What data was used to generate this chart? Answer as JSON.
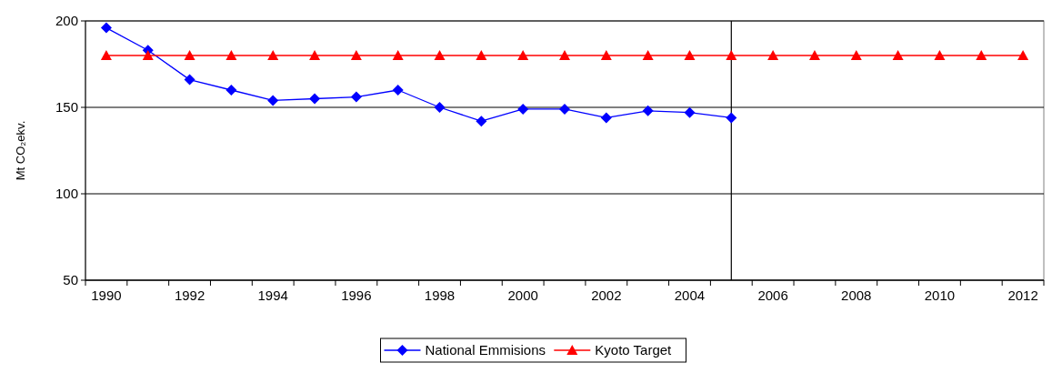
{
  "chart_data": {
    "type": "line",
    "ylabel": "Mt CO₂ekv.",
    "x": [
      1990,
      1991,
      1992,
      1993,
      1994,
      1995,
      1996,
      1997,
      1998,
      1999,
      2000,
      2001,
      2002,
      2003,
      2004,
      2005,
      2006,
      2007,
      2008,
      2009,
      2010,
      2011,
      2012
    ],
    "xlim": [
      1989.5,
      2012.5
    ],
    "xticks": [
      {
        "value": 1989.5,
        "label": null
      },
      1990,
      {
        "value": 1990.5,
        "label": null
      },
      {
        "value": 1991.5,
        "label": null
      },
      1992,
      {
        "value": 1992.5,
        "label": null
      },
      {
        "value": 1993.5,
        "label": null
      },
      1994,
      {
        "value": 1994.5,
        "label": null
      },
      {
        "value": 1995.5,
        "label": null
      },
      1996,
      {
        "value": 1996.5,
        "label": null
      },
      {
        "value": 1997.5,
        "label": null
      },
      1998,
      {
        "value": 1998.5,
        "label": null
      },
      {
        "value": 1999.5,
        "label": null
      },
      2000,
      {
        "value": 2000.5,
        "label": null
      },
      {
        "value": 2001.5,
        "label": null
      },
      2002,
      {
        "value": 2002.5,
        "label": null
      },
      {
        "value": 2003.5,
        "label": null
      },
      2004,
      {
        "value": 2004.5,
        "label": null
      },
      {
        "value": 2005.5,
        "label": null
      },
      2006,
      {
        "value": 2006.5,
        "label": null
      },
      {
        "value": 2007.5,
        "label": null
      },
      2008,
      {
        "value": 2008.5,
        "label": null
      },
      {
        "value": 2009.5,
        "label": null
      },
      2010,
      {
        "value": 2010.5,
        "label": null
      },
      {
        "value": 2011.5,
        "label": null
      },
      2012,
      {
        "value": 2012.5,
        "label": null
      }
    ],
    "ylim": [
      50,
      200
    ],
    "yticks": [
      50,
      100,
      150,
      200
    ],
    "grid": "y",
    "legend": "bottom",
    "series": [
      {
        "name": "National Emmisions",
        "color": "#0000ff",
        "marker": "diamond",
        "values": [
          196,
          183,
          166,
          160,
          154,
          155,
          156,
          160,
          150,
          142,
          149,
          149,
          144,
          148,
          147,
          144,
          null,
          null,
          null,
          null,
          null,
          null,
          null
        ]
      },
      {
        "name": "Kyoto Target",
        "color": "#ff0000",
        "marker": "triangle",
        "values": [
          180,
          180,
          180,
          180,
          180,
          180,
          180,
          180,
          180,
          180,
          180,
          180,
          180,
          180,
          180,
          180,
          180,
          180,
          180,
          180,
          180,
          180,
          180
        ]
      }
    ],
    "ref_lines": [
      {
        "axis": "x",
        "value": 2005,
        "color": "#000000"
      }
    ]
  }
}
